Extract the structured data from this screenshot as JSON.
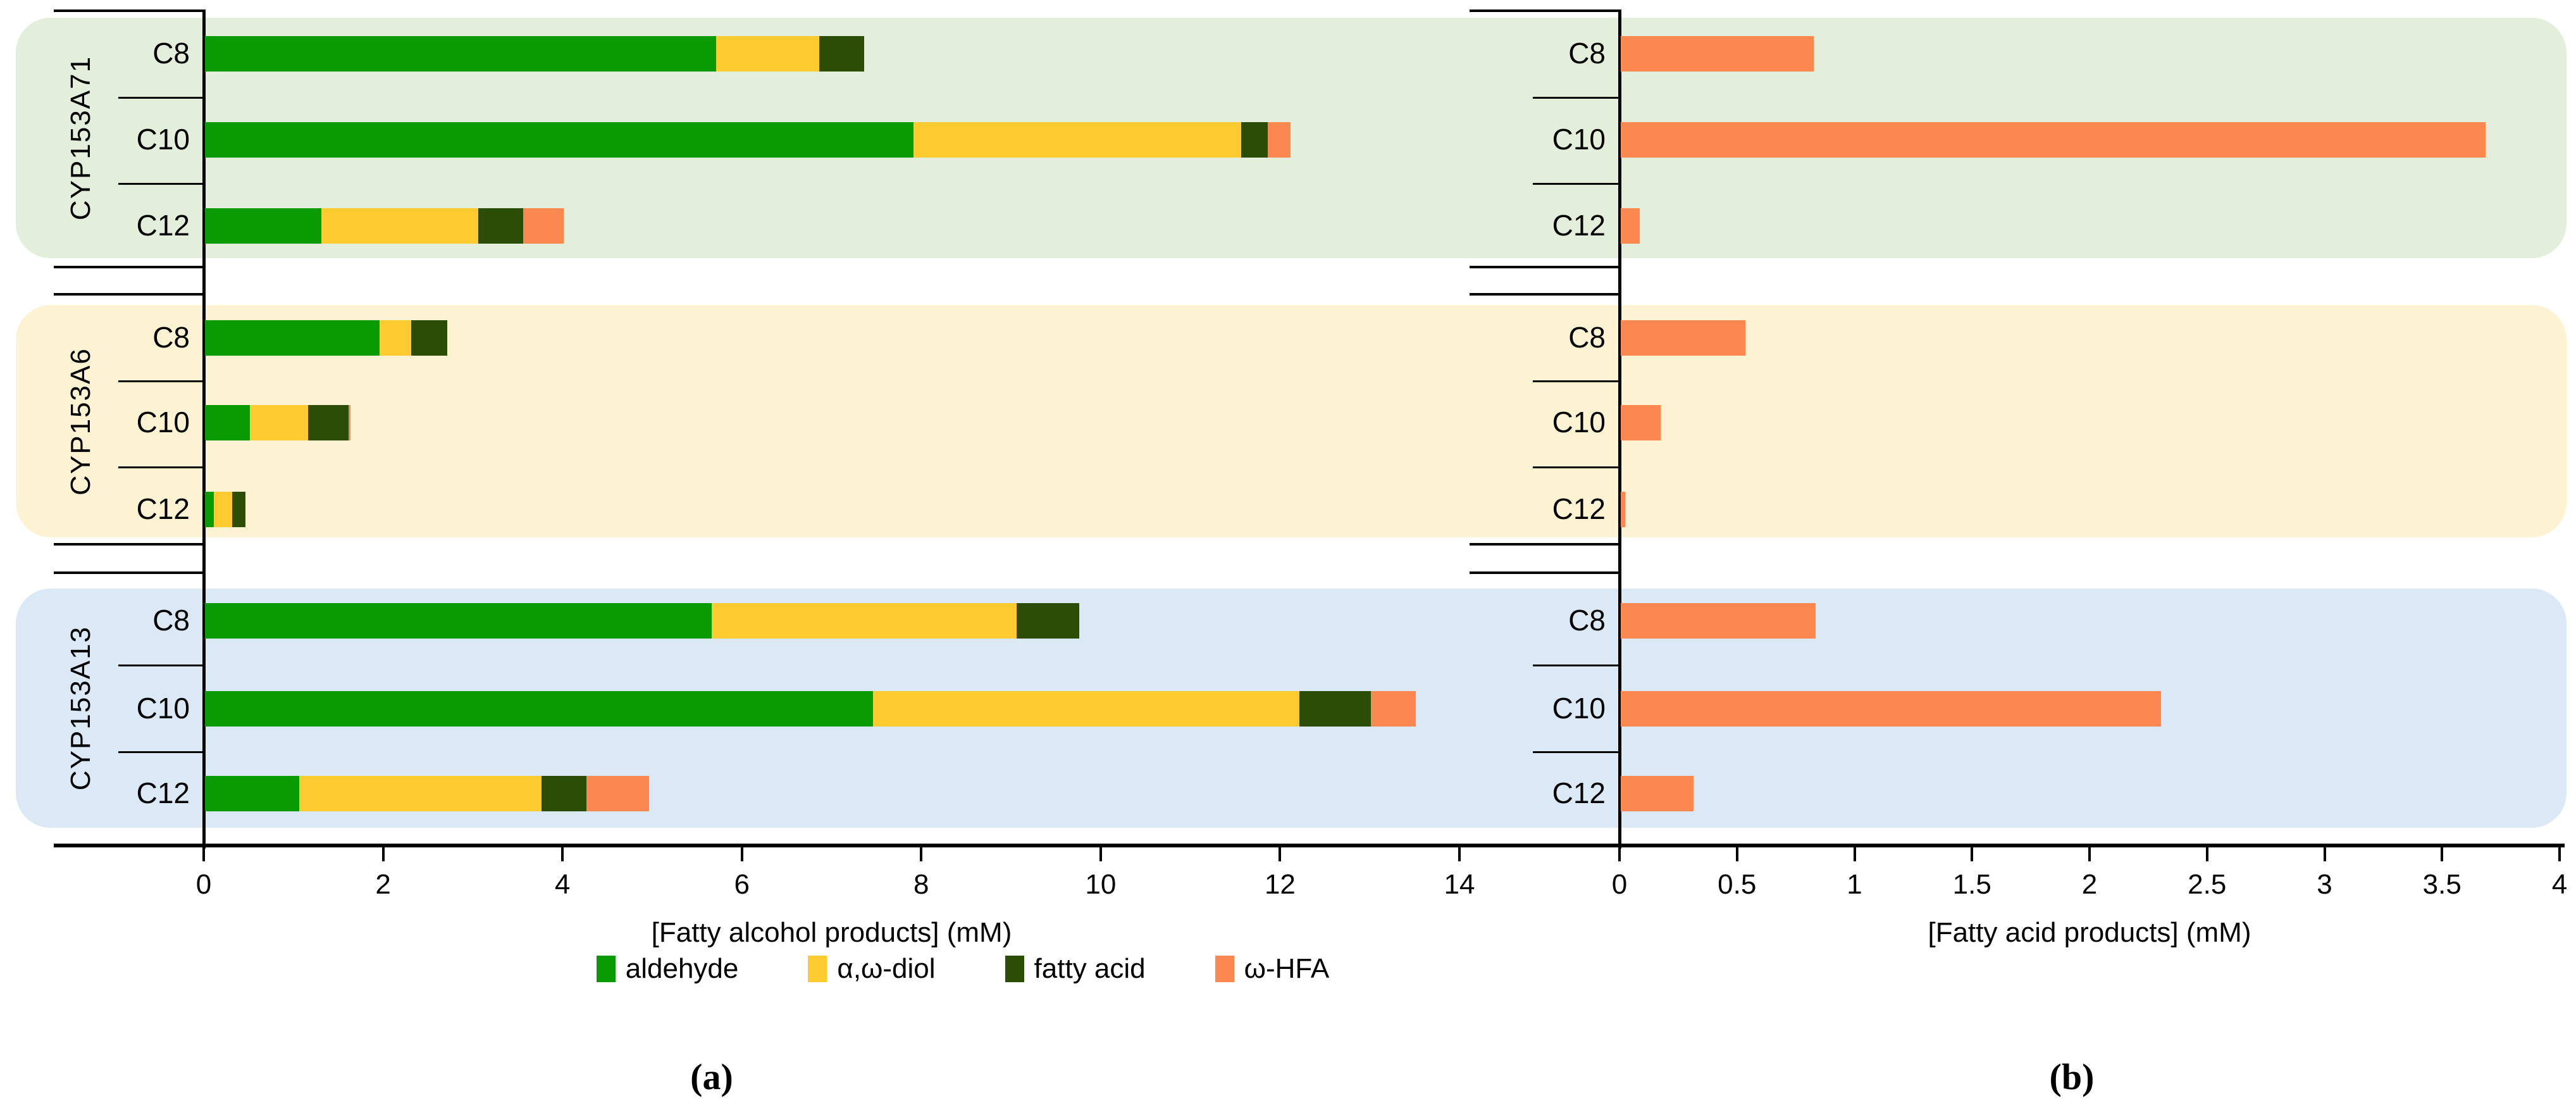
{
  "figure": {
    "panel_a_label": "(a)",
    "panel_b_label": "(b)"
  },
  "colors": {
    "aldehyde": "#0a9b03",
    "diol": "#fdca30",
    "fatty_acid": "#2b4d06",
    "hfa": "#fb8751",
    "band_green": "#e3efda",
    "band_yellow": "#fdf3d2",
    "band_blue": "#dbe8f6",
    "axis": "#000000"
  },
  "legend": [
    {
      "label": "aldehyde",
      "color": "#0a9b03"
    },
    {
      "label": "α,ω-diol",
      "color": "#fdca30"
    },
    {
      "label": "fatty acid",
      "color": "#2b4d06"
    },
    {
      "label": "ω-HFA",
      "color": "#fb8751"
    }
  ],
  "chart_data": [
    {
      "type": "bar",
      "orientation": "horizontal",
      "stacked": true,
      "xlabel": "[Fatty alcohol products] (mM)",
      "xlim": [
        0,
        14
      ],
      "xticks": [
        0,
        2,
        4,
        6,
        8,
        10,
        12,
        14
      ],
      "xticklabels": [
        "0",
        "2",
        "4",
        "6",
        "8",
        "10",
        "12",
        "14"
      ],
      "grid": false,
      "series": [
        {
          "name": "aldehyde",
          "color": "#0a9b03"
        },
        {
          "name": "α,ω-diol",
          "color": "#fdca30"
        },
        {
          "name": "fatty acid",
          "color": "#2b4d06"
        },
        {
          "name": "ω-HFA",
          "color": "#fb8751"
        }
      ],
      "groups": [
        {
          "name": "CYP153A71",
          "band_color": "#e3efda",
          "rows": [
            {
              "category": "C8",
              "segments": [
                5.7,
                1.15,
                0.5,
                0
              ]
            },
            {
              "category": "C10",
              "segments": [
                7.9,
                3.65,
                0.3,
                0.25
              ]
            },
            {
              "category": "C12",
              "segments": [
                1.3,
                1.75,
                0.5,
                0.45
              ]
            }
          ]
        },
        {
          "name": "CYP153A6",
          "band_color": "#fdf3d2",
          "rows": [
            {
              "category": "C8",
              "segments": [
                1.95,
                0.35,
                0.4,
                0
              ]
            },
            {
              "category": "C10",
              "segments": [
                0.5,
                0.65,
                0.45,
                0.02
              ]
            },
            {
              "category": "C12",
              "segments": [
                0.1,
                0.2,
                0.15,
                0
              ]
            }
          ]
        },
        {
          "name": "CYP153A13",
          "band_color": "#dbe8f6",
          "rows": [
            {
              "category": "C8",
              "segments": [
                5.65,
                3.4,
                0.7,
                0
              ]
            },
            {
              "category": "C10",
              "segments": [
                7.45,
                4.75,
                0.8,
                0.5
              ]
            },
            {
              "category": "C12",
              "segments": [
                1.05,
                2.7,
                0.5,
                0.7
              ]
            }
          ]
        }
      ]
    },
    {
      "type": "bar",
      "orientation": "horizontal",
      "stacked": false,
      "xlabel": "[Fatty acid products] (mM)",
      "xlim": [
        0,
        4
      ],
      "xticks": [
        0,
        0.5,
        1,
        1.5,
        2,
        2.5,
        3,
        3.5,
        4
      ],
      "xticklabels": [
        "0",
        "0.5",
        "1",
        "1.5",
        "2",
        "2.5",
        "3",
        "3.5",
        "4"
      ],
      "grid": false,
      "series": [
        {
          "name": "ω-HFA",
          "color": "#fb8751"
        }
      ],
      "groups": [
        {
          "name": "CYP153A71",
          "band_color": "#e3efda",
          "rows": [
            {
              "category": "C8",
              "segments": [
                0.82
              ]
            },
            {
              "category": "C10",
              "segments": [
                3.68
              ]
            },
            {
              "category": "C12",
              "segments": [
                0.08
              ]
            }
          ]
        },
        {
          "name": "CYP153A6",
          "band_color": "#fdf3d2",
          "rows": [
            {
              "category": "C8",
              "segments": [
                0.53
              ]
            },
            {
              "category": "C10",
              "segments": [
                0.17
              ]
            },
            {
              "category": "C12",
              "segments": [
                0.02
              ]
            }
          ]
        },
        {
          "name": "CYP153A13",
          "band_color": "#dbe8f6",
          "rows": [
            {
              "category": "C8",
              "segments": [
                0.83
              ]
            },
            {
              "category": "C10",
              "segments": [
                2.3
              ]
            },
            {
              "category": "C12",
              "segments": [
                0.31
              ]
            }
          ]
        }
      ]
    }
  ]
}
